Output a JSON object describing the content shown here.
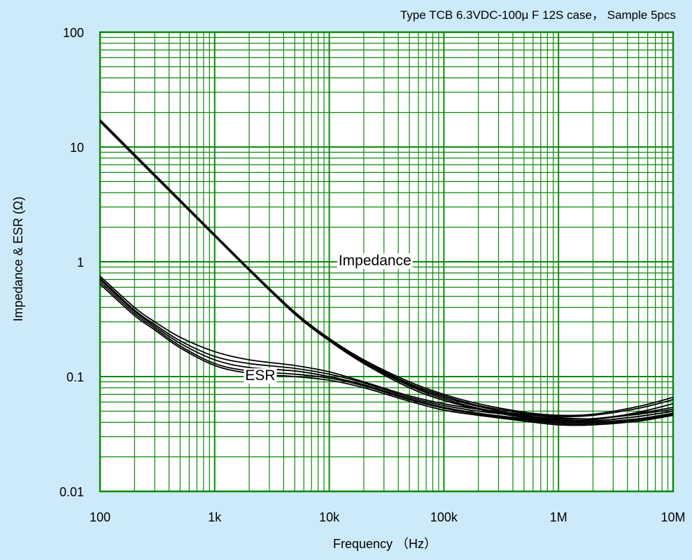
{
  "chart_data": {
    "type": "line",
    "title": "Type TCB 6.3VDC-100μ F 12S case， Sample 5pcs",
    "xlabel": "Frequency （Hz）",
    "ylabel": "Impedance & ESR (Ω)",
    "x_scale": "log",
    "y_scale": "log",
    "xlim": [
      100,
      10000000
    ],
    "ylim": [
      0.01,
      100
    ],
    "grid": true,
    "legend": "none",
    "x_ticks": [
      {
        "value": 100,
        "label": "100"
      },
      {
        "value": 1000,
        "label": "1k"
      },
      {
        "value": 10000,
        "label": "10k"
      },
      {
        "value": 100000,
        "label": "100k"
      },
      {
        "value": 1000000,
        "label": "1M"
      },
      {
        "value": 10000000,
        "label": "10M"
      }
    ],
    "y_ticks": [
      {
        "value": 100,
        "label": "100"
      },
      {
        "value": 10,
        "label": "10"
      },
      {
        "value": 1,
        "label": "1"
      },
      {
        "value": 0.1,
        "label": "0.1"
      },
      {
        "value": 0.01,
        "label": "0.01"
      }
    ],
    "annotations": [
      {
        "text": "Impedance",
        "x": 25000,
        "y": 0.93
      },
      {
        "text": "ESR",
        "x": 2500,
        "y": 0.093
      }
    ],
    "series": [
      {
        "group": "Impedance",
        "x": [
          100,
          200,
          500,
          1000,
          2000,
          5000,
          10000,
          20000,
          50000,
          100000,
          200000,
          500000,
          1000000,
          2000000,
          5000000,
          10000000
        ],
        "values": [
          17.0,
          8.5,
          3.4,
          1.7,
          0.86,
          0.36,
          0.21,
          0.135,
          0.085,
          0.066,
          0.055,
          0.046,
          0.043,
          0.043,
          0.047,
          0.052
        ]
      },
      {
        "group": "Impedance",
        "x": [
          100,
          200,
          500,
          1000,
          2000,
          5000,
          10000,
          20000,
          50000,
          100000,
          200000,
          500000,
          1000000,
          2000000,
          5000000,
          10000000
        ],
        "values": [
          16.6,
          8.3,
          3.33,
          1.67,
          0.84,
          0.35,
          0.205,
          0.13,
          0.08,
          0.062,
          0.052,
          0.044,
          0.041,
          0.041,
          0.045,
          0.05
        ]
      },
      {
        "group": "Impedance",
        "x": [
          100,
          200,
          500,
          1000,
          2000,
          5000,
          10000,
          20000,
          50000,
          100000,
          200000,
          500000,
          1000000,
          2000000,
          5000000,
          10000000
        ],
        "values": [
          17.3,
          8.65,
          3.46,
          1.73,
          0.87,
          0.365,
          0.215,
          0.14,
          0.09,
          0.07,
          0.058,
          0.049,
          0.046,
          0.047,
          0.055,
          0.066
        ]
      },
      {
        "group": "Impedance",
        "x": [
          100,
          200,
          500,
          1000,
          2000,
          5000,
          10000,
          20000,
          50000,
          100000,
          200000,
          500000,
          1000000,
          2000000,
          5000000,
          10000000
        ],
        "values": [
          16.8,
          8.4,
          3.36,
          1.68,
          0.85,
          0.355,
          0.208,
          0.133,
          0.083,
          0.064,
          0.053,
          0.045,
          0.042,
          0.042,
          0.049,
          0.058
        ]
      },
      {
        "group": "Impedance",
        "x": [
          100,
          200,
          500,
          1000,
          2000,
          5000,
          10000,
          20000,
          50000,
          100000,
          200000,
          500000,
          1000000,
          2000000,
          5000000,
          10000000
        ],
        "values": [
          17.1,
          8.55,
          3.42,
          1.71,
          0.86,
          0.36,
          0.212,
          0.137,
          0.087,
          0.068,
          0.056,
          0.048,
          0.045,
          0.046,
          0.053,
          0.063
        ]
      },
      {
        "group": "ESR",
        "x": [
          100,
          200,
          300,
          500,
          1000,
          2000,
          5000,
          10000,
          20000,
          50000,
          100000,
          200000,
          500000,
          1000000,
          2000000,
          5000000,
          10000000
        ],
        "values": [
          0.75,
          0.4,
          0.3,
          0.22,
          0.165,
          0.14,
          0.125,
          0.11,
          0.09,
          0.068,
          0.058,
          0.052,
          0.047,
          0.044,
          0.043,
          0.048,
          0.054
        ]
      },
      {
        "group": "ESR",
        "x": [
          100,
          200,
          300,
          500,
          1000,
          2000,
          5000,
          10000,
          20000,
          50000,
          100000,
          200000,
          500000,
          1000000,
          2000000,
          5000000,
          10000000
        ],
        "values": [
          0.72,
          0.38,
          0.285,
          0.205,
          0.15,
          0.13,
          0.118,
          0.105,
          0.088,
          0.066,
          0.056,
          0.05,
          0.045,
          0.042,
          0.041,
          0.045,
          0.05
        ]
      },
      {
        "group": "ESR",
        "x": [
          100,
          200,
          300,
          500,
          1000,
          2000,
          5000,
          10000,
          20000,
          50000,
          100000,
          200000,
          500000,
          1000000,
          2000000,
          5000000,
          10000000
        ],
        "values": [
          0.7,
          0.37,
          0.275,
          0.195,
          0.14,
          0.12,
          0.112,
          0.1,
          0.085,
          0.064,
          0.054,
          0.048,
          0.043,
          0.04,
          0.04,
          0.043,
          0.048
        ]
      },
      {
        "group": "ESR",
        "x": [
          100,
          200,
          300,
          500,
          1000,
          2000,
          5000,
          10000,
          20000,
          50000,
          100000,
          200000,
          500000,
          1000000,
          2000000,
          5000000,
          10000000
        ],
        "values": [
          0.67,
          0.355,
          0.265,
          0.185,
          0.13,
          0.112,
          0.105,
          0.097,
          0.083,
          0.063,
          0.053,
          0.047,
          0.042,
          0.039,
          0.039,
          0.042,
          0.047
        ]
      },
      {
        "group": "ESR",
        "x": [
          100,
          200,
          300,
          500,
          1000,
          2000,
          5000,
          10000,
          20000,
          50000,
          100000,
          200000,
          500000,
          1000000,
          2000000,
          5000000,
          10000000
        ],
        "values": [
          0.64,
          0.34,
          0.255,
          0.178,
          0.125,
          0.107,
          0.1,
          0.093,
          0.08,
          0.061,
          0.051,
          0.046,
          0.041,
          0.038,
          0.038,
          0.041,
          0.046
        ]
      }
    ]
  },
  "colors": {
    "background": "#cdeafb",
    "plot_background": "#ffffff",
    "grid": "#0a8a0a",
    "curve": "#000000",
    "text": "#000000"
  }
}
